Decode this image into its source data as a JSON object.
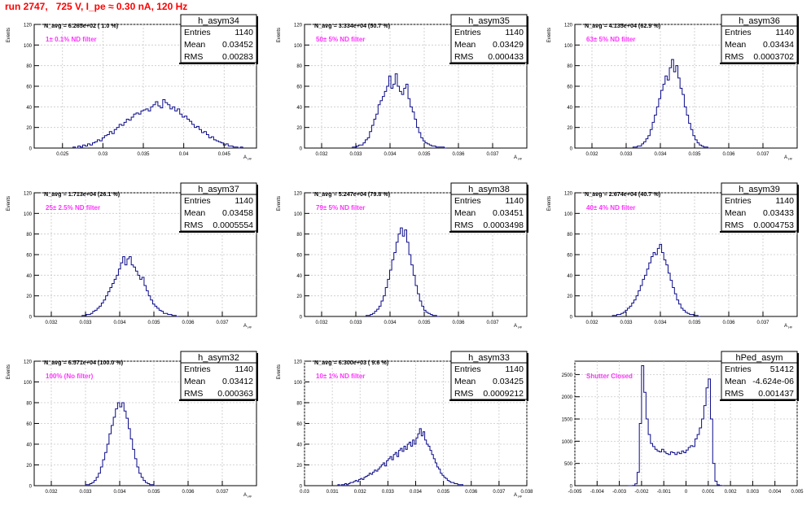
{
  "page": {
    "title": "run 2747,   725 V, I_pe ≈ 0.30 nA, 120 Hz"
  },
  "chart_data": [
    {
      "type": "histogram",
      "name": "h_asym34",
      "ylabel": "Events",
      "xlabel": "A",
      "xlabel_sub": "μp",
      "ylim": [
        0,
        120
      ],
      "yticks": [
        0,
        20,
        40,
        60,
        80,
        100,
        120
      ],
      "xlim": [
        0.0215,
        0.049
      ],
      "xticks": [
        0.025,
        0.03,
        0.035,
        0.04,
        0.045
      ],
      "xtick_labels": [
        "0.025",
        "0.03",
        "0.035",
        "0.04",
        "0.045"
      ],
      "navg": "N_avg = 6.265e+02 ( 1.0 %)",
      "filter": "1± 0.1% ND filter",
      "stats": {
        "entries": "1140",
        "mean": "0.03452",
        "rms": "0.00283"
      },
      "bin_start": 0.0263,
      "bin_width": 0.0003,
      "values": [
        1,
        0,
        2,
        1,
        3,
        2,
        4,
        3,
        5,
        6,
        8,
        7,
        10,
        12,
        13,
        16,
        14,
        18,
        20,
        23,
        22,
        25,
        28,
        27,
        30,
        33,
        34,
        33,
        36,
        37,
        38,
        36,
        40,
        42,
        45,
        41,
        39,
        47,
        44,
        42,
        38,
        40,
        36,
        38,
        33,
        30,
        31,
        28,
        26,
        23,
        20,
        21,
        18,
        15,
        16,
        13,
        10,
        11,
        8,
        7,
        6,
        5,
        3,
        4,
        2,
        2,
        1,
        1,
        0,
        1
      ]
    },
    {
      "type": "histogram",
      "name": "h_asym35",
      "ylabel": "Events",
      "xlabel": "A",
      "xlabel_sub": "μp",
      "ylim": [
        0,
        120
      ],
      "yticks": [
        0,
        20,
        40,
        60,
        80,
        100,
        120
      ],
      "xlim": [
        0.0315,
        0.038
      ],
      "xticks": [
        0.032,
        0.033,
        0.034,
        0.035,
        0.036,
        0.037
      ],
      "xtick_labels": [
        "0.032",
        "0.033",
        "0.034",
        "0.035",
        "0.036",
        "0.037"
      ],
      "navg": "N_avg = 3.334e+04 (50.7 %)",
      "filter": "50± 5% ND filter",
      "stats": {
        "entries": "1140",
        "mean": "0.03429",
        "rms": "0.000433"
      },
      "bin_start": 0.0329,
      "bin_width": 6.25e-05,
      "values": [
        1,
        1,
        2,
        3,
        3,
        5,
        8,
        10,
        16,
        22,
        28,
        33,
        42,
        46,
        50,
        55,
        60,
        70,
        58,
        62,
        72,
        60,
        55,
        52,
        58,
        62,
        48,
        40,
        35,
        28,
        20,
        15,
        10,
        7,
        5,
        4,
        3,
        2,
        2,
        1,
        1,
        1,
        1,
        0
      ]
    },
    {
      "type": "histogram",
      "name": "h_asym36",
      "ylabel": "Events",
      "xlabel": "A",
      "xlabel_sub": "μp",
      "ylim": [
        0,
        120
      ],
      "yticks": [
        0,
        20,
        40,
        60,
        80,
        100,
        120
      ],
      "xlim": [
        0.0315,
        0.038
      ],
      "xticks": [
        0.032,
        0.033,
        0.034,
        0.035,
        0.036,
        0.037
      ],
      "xtick_labels": [
        "0.032",
        "0.033",
        "0.034",
        "0.035",
        "0.036",
        "0.037"
      ],
      "navg": "N_avg = 4.135e+04 (62.9 %)",
      "filter": "63± 5% ND filter",
      "stats": {
        "entries": "1140",
        "mean": "0.03434",
        "rms": "0.0003702"
      },
      "bin_start": 0.0332,
      "bin_width": 6.25e-05,
      "values": [
        1,
        1,
        2,
        2,
        4,
        6,
        9,
        12,
        18,
        25,
        32,
        40,
        48,
        56,
        62,
        70,
        66,
        78,
        86,
        74,
        80,
        68,
        58,
        52,
        40,
        32,
        24,
        18,
        12,
        8,
        5,
        3,
        2,
        1,
        1,
        0
      ]
    },
    {
      "type": "histogram",
      "name": "h_asym37",
      "ylabel": "Events",
      "xlabel": "A",
      "xlabel_sub": "μp",
      "ylim": [
        0,
        120
      ],
      "yticks": [
        0,
        20,
        40,
        60,
        80,
        100,
        120
      ],
      "xlim": [
        0.0315,
        0.038
      ],
      "xticks": [
        0.032,
        0.033,
        0.034,
        0.035,
        0.036,
        0.037
      ],
      "xtick_labels": [
        "0.032",
        "0.033",
        "0.034",
        "0.035",
        "0.036",
        "0.037"
      ],
      "navg": "N_avg = 1.713e+04 (26.1 %)",
      "filter": "25± 2.5% ND filter",
      "stats": {
        "entries": "1140",
        "mean": "0.03458",
        "rms": "0.0005554"
      },
      "bin_start": 0.0329,
      "bin_width": 6.25e-05,
      "values": [
        1,
        1,
        2,
        2,
        3,
        5,
        6,
        8,
        10,
        13,
        16,
        20,
        24,
        28,
        32,
        36,
        40,
        46,
        52,
        58,
        50,
        56,
        58,
        50,
        48,
        44,
        40,
        36,
        38,
        30,
        25,
        20,
        16,
        12,
        10,
        8,
        6,
        5,
        3,
        3,
        2,
        2,
        1,
        1,
        0
      ]
    },
    {
      "type": "histogram",
      "name": "h_asym38",
      "ylabel": "Events",
      "xlabel": "A",
      "xlabel_sub": "μp",
      "ylim": [
        0,
        120
      ],
      "yticks": [
        0,
        20,
        40,
        60,
        80,
        100,
        120
      ],
      "xlim": [
        0.0315,
        0.038
      ],
      "xticks": [
        0.032,
        0.033,
        0.034,
        0.035,
        0.036,
        0.037
      ],
      "xtick_labels": [
        "0.032",
        "0.033",
        "0.034",
        "0.035",
        "0.036",
        "0.037"
      ],
      "navg": "N_avg = 5.247e+04 (79.8 %)",
      "filter": "79± 5% ND filter",
      "stats": {
        "entries": "1140",
        "mean": "0.03451",
        "rms": "0.0003498"
      },
      "bin_start": 0.0333,
      "bin_width": 6.25e-05,
      "values": [
        1,
        1,
        2,
        3,
        5,
        7,
        10,
        15,
        20,
        28,
        36,
        45,
        55,
        62,
        72,
        80,
        86,
        78,
        84,
        72,
        60,
        50,
        40,
        30,
        22,
        15,
        10,
        6,
        4,
        3,
        2,
        1,
        1,
        0
      ]
    },
    {
      "type": "histogram",
      "name": "h_asym39",
      "ylabel": "Events",
      "xlabel": "A",
      "xlabel_sub": "μp",
      "ylim": [
        0,
        120
      ],
      "yticks": [
        0,
        20,
        40,
        60,
        80,
        100,
        120
      ],
      "xlim": [
        0.0315,
        0.038
      ],
      "xticks": [
        0.032,
        0.033,
        0.034,
        0.035,
        0.036,
        0.037
      ],
      "xtick_labels": [
        "0.032",
        "0.033",
        "0.034",
        "0.035",
        "0.036",
        "0.037"
      ],
      "navg": "N_avg = 2.674e+04 (40.7 %)",
      "filter": "40± 4% ND filter",
      "stats": {
        "entries": "1140",
        "mean": "0.03433",
        "rms": "0.0004753"
      },
      "bin_start": 0.0326,
      "bin_width": 6.25e-05,
      "values": [
        1,
        1,
        2,
        2,
        3,
        4,
        6,
        8,
        10,
        13,
        16,
        20,
        25,
        30,
        36,
        40,
        46,
        52,
        58,
        62,
        60,
        66,
        70,
        62,
        55,
        50,
        42,
        35,
        28,
        22,
        16,
        12,
        8,
        6,
        4,
        3,
        2,
        2,
        1,
        1,
        0
      ]
    },
    {
      "type": "histogram",
      "name": "h_asym32",
      "ylabel": "Events",
      "xlabel": "A",
      "xlabel_sub": "μp",
      "ylim": [
        0,
        120
      ],
      "yticks": [
        0,
        20,
        40,
        60,
        80,
        100,
        120
      ],
      "xlim": [
        0.0315,
        0.038
      ],
      "xticks": [
        0.032,
        0.033,
        0.034,
        0.035,
        0.036,
        0.037
      ],
      "xtick_labels": [
        "0.032",
        "0.033",
        "0.034",
        "0.035",
        "0.036",
        "0.037"
      ],
      "navg": "N_avg = 6.571e+04 (100.0 %)",
      "filter": "100% (No filter)",
      "stats": {
        "entries": "1140",
        "mean": "0.03412",
        "rms": "0.000363"
      },
      "bin_start": 0.033,
      "bin_width": 6.25e-05,
      "values": [
        1,
        1,
        2,
        3,
        5,
        8,
        12,
        18,
        25,
        32,
        40,
        50,
        58,
        66,
        74,
        80,
        76,
        80,
        72,
        65,
        55,
        45,
        35,
        26,
        18,
        12,
        8,
        5,
        3,
        2,
        1,
        1,
        0
      ]
    },
    {
      "type": "histogram",
      "name": "h_asym33",
      "ylabel": "Events",
      "xlabel": "A",
      "xlabel_sub": "μp",
      "ylim": [
        0,
        120
      ],
      "yticks": [
        0,
        20,
        40,
        60,
        80,
        100,
        120
      ],
      "xlim": [
        0.03,
        0.038
      ],
      "xticks": [
        0.03,
        0.031,
        0.032,
        0.033,
        0.034,
        0.035,
        0.036,
        0.037,
        0.038
      ],
      "xtick_labels": [
        "0.03",
        "0.031",
        "0.032",
        "0.033",
        "0.034",
        "0.035",
        "0.036",
        "0.037",
        "0.038"
      ],
      "navg": "N_avg = 6.300e+03 ( 9.6 %)",
      "filter": "10± 1% ND filter",
      "stats": {
        "entries": "1140",
        "mean": "0.03425",
        "rms": "0.0009212"
      },
      "bin_start": 0.0312,
      "bin_width": 6.25e-05,
      "values": [
        1,
        0,
        1,
        1,
        2,
        1,
        2,
        3,
        3,
        4,
        5,
        4,
        6,
        7,
        6,
        8,
        9,
        10,
        12,
        11,
        13,
        15,
        14,
        16,
        18,
        20,
        22,
        19,
        24,
        26,
        28,
        25,
        30,
        32,
        28,
        34,
        36,
        33,
        38,
        35,
        40,
        42,
        38,
        44,
        40,
        46,
        50,
        55,
        48,
        52,
        44,
        40,
        38,
        34,
        30,
        26,
        22,
        18,
        16,
        12,
        10,
        8,
        7,
        5,
        4,
        3,
        3,
        2,
        2,
        1,
        1,
        1,
        0
      ]
    },
    {
      "type": "histogram",
      "name": "hPed_asym",
      "ylabel": "",
      "xlabel": "",
      "xlabel_sub": "",
      "ylim": [
        0,
        2800
      ],
      "yticks": [
        0,
        500,
        1000,
        1500,
        2000,
        2500
      ],
      "xlim": [
        -0.005,
        0.005
      ],
      "xticks": [
        -0.005,
        -0.004,
        -0.003,
        -0.002,
        -0.001,
        0,
        0.001,
        0.002,
        0.003,
        0.004,
        0.005
      ],
      "xtick_labels": [
        "-0.005",
        "-0.004",
        "-0.003",
        "-0.002",
        "-0.001",
        "0",
        "0.001",
        "0.002",
        "0.003",
        "0.004",
        "0.005"
      ],
      "navg": "",
      "filter": "Shutter Closed",
      "stats": {
        "entries": "51412",
        "mean": "-4.624e-06",
        "rms": "0.001437"
      },
      "bin_start": -0.0026,
      "bin_width": 0.0001,
      "values": [
        0,
        0,
        5,
        40,
        300,
        1400,
        2700,
        2100,
        1500,
        1150,
        950,
        880,
        820,
        780,
        760,
        820,
        760,
        720,
        700,
        760,
        740,
        700,
        750,
        720,
        780,
        740,
        800,
        860,
        900,
        880,
        1050,
        1150,
        1300,
        1500,
        1800,
        2200,
        2400,
        1500,
        500,
        100,
        20,
        5,
        0
      ]
    }
  ]
}
